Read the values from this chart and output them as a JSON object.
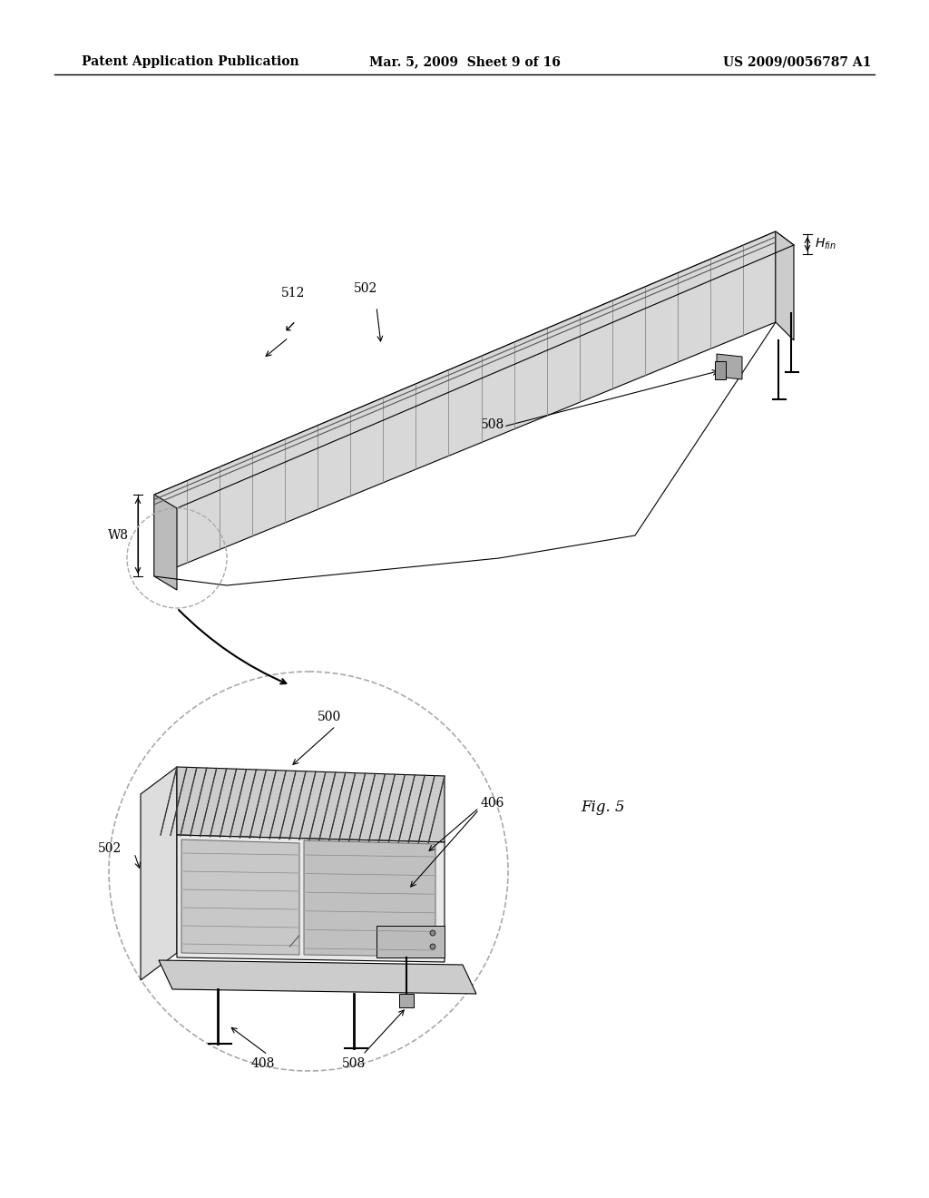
{
  "bg_color": "#ffffff",
  "header_left": "Patent Application Publication",
  "header_mid": "Mar. 5, 2009  Sheet 9 of 16",
  "header_right": "US 2009/0056787 A1",
  "fig_label": "Fig. 5"
}
